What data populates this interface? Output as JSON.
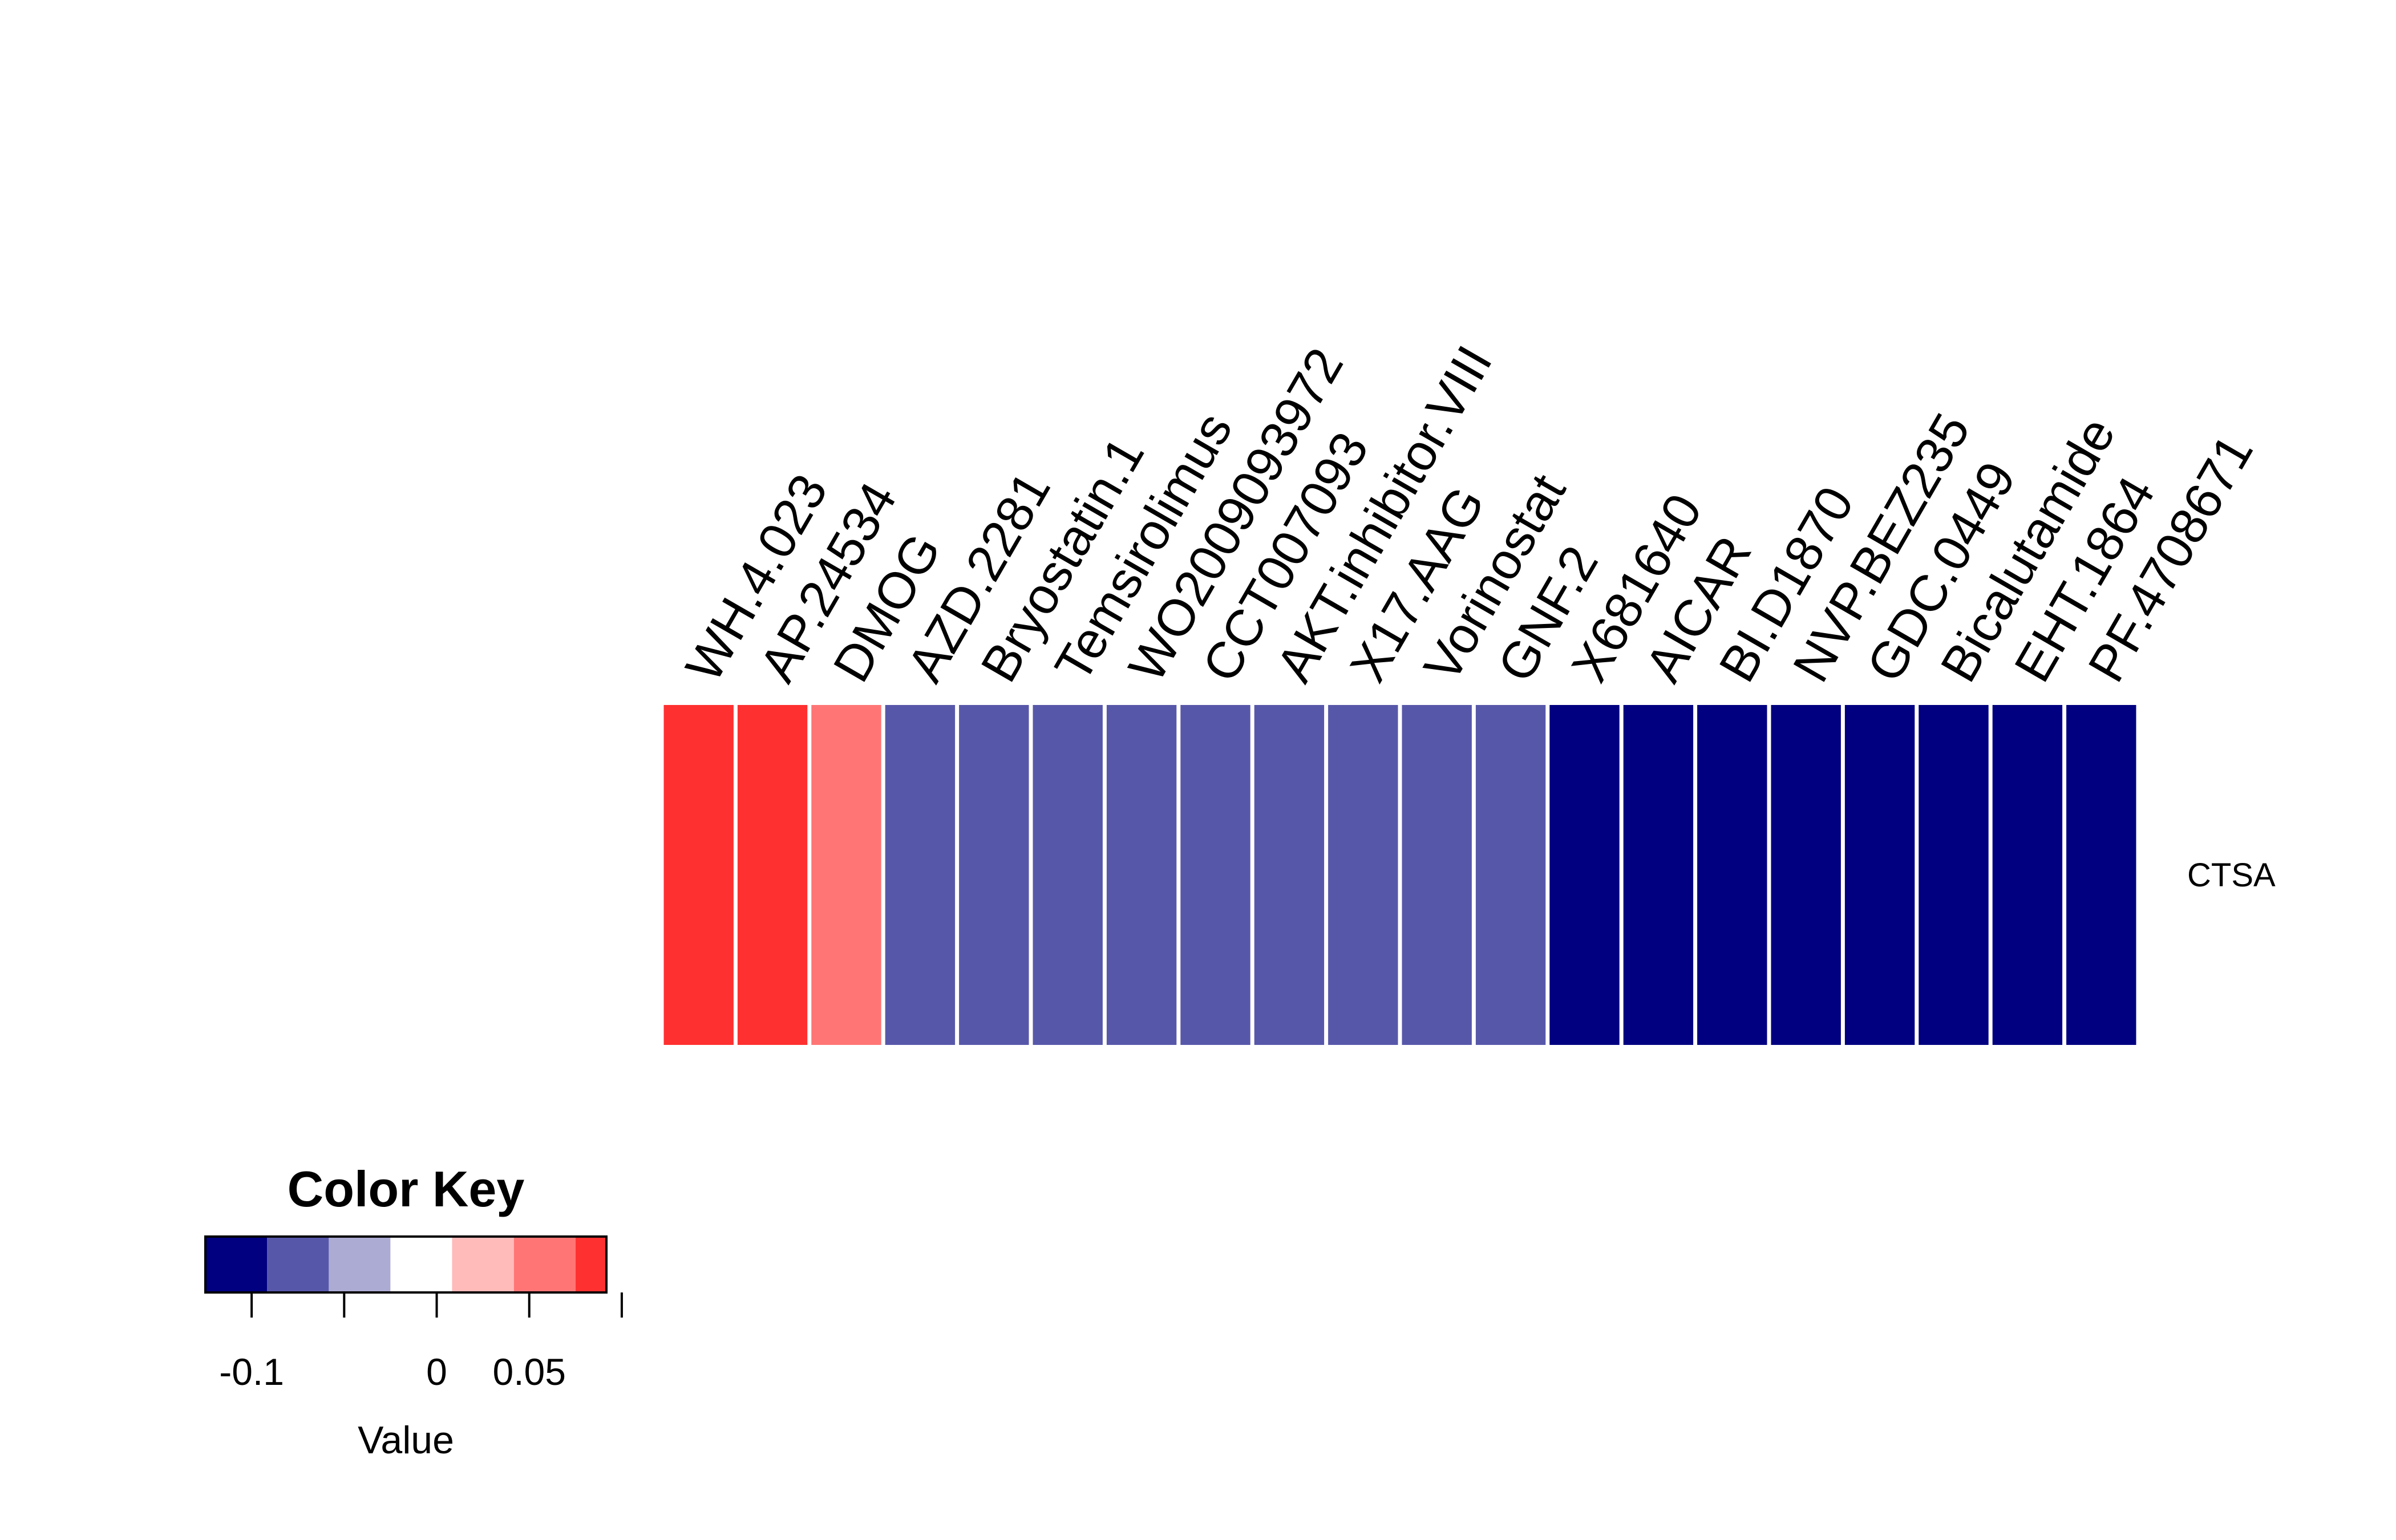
{
  "chart_data": {
    "type": "heatmap",
    "rows": [
      "CTSA"
    ],
    "columns": [
      "WH.4.023",
      "AP.24534",
      "DMOG",
      "AZD.2281",
      "Bryostatin.1",
      "Temsirolimus",
      "WO2009093972",
      "CCT007093",
      "AKT.inhibitor.VIII",
      "X17.AAG",
      "Vorinostat",
      "GNF.2",
      "X681640",
      "AICAR",
      "BI.D1870",
      "NVP.BEZ235",
      "GDC.0449",
      "Bicalutamide",
      "EHT.1864",
      "PF.4708671"
    ],
    "values": [
      [
        0.08,
        0.08,
        0.05,
        -0.075,
        -0.075,
        -0.075,
        -0.075,
        -0.075,
        -0.075,
        -0.075,
        -0.075,
        -0.075,
        -0.1,
        -0.1,
        -0.1,
        -0.1,
        -0.1,
        -0.1,
        -0.1,
        -0.1
      ]
    ],
    "color_key": {
      "title": "Color Key",
      "xlabel": "Value",
      "breaks": [
        -0.125,
        -0.0917,
        -0.0583,
        -0.025,
        0.0083,
        0.0417,
        0.075,
        0.0917
      ],
      "colors": [
        "#000080",
        "#5757AA",
        "#ABABD4",
        "#FFFFFF",
        "#FFBABA",
        "#FF7575",
        "#FF3030"
      ],
      "ticks": [
        -0.1,
        -0.05,
        0,
        0.05,
        0.1
      ],
      "tick_labels": [
        "-0.1",
        "",
        "0",
        "0.05",
        ""
      ]
    }
  }
}
